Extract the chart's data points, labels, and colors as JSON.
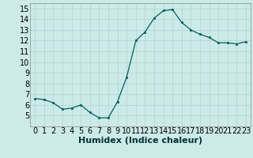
{
  "x": [
    0,
    1,
    2,
    3,
    4,
    5,
    6,
    7,
    8,
    9,
    10,
    11,
    12,
    13,
    14,
    15,
    16,
    17,
    18,
    19,
    20,
    21,
    22,
    23
  ],
  "y": [
    6.6,
    6.5,
    6.2,
    5.6,
    5.7,
    6.0,
    5.3,
    4.8,
    4.8,
    6.3,
    8.6,
    12.0,
    12.8,
    14.1,
    14.8,
    14.9,
    13.7,
    13.0,
    12.6,
    12.3,
    11.8,
    11.8,
    11.7,
    11.9
  ],
  "line_color": "#006060",
  "marker_color": "#006060",
  "bg_color": "#cceae8",
  "grid_color": "#b0d4d0",
  "xlabel": "Humidex (Indice chaleur)",
  "ylim": [
    4,
    15.5
  ],
  "xlim": [
    -0.5,
    23.5
  ],
  "yticks": [
    5,
    6,
    7,
    8,
    9,
    10,
    11,
    12,
    13,
    14,
    15
  ],
  "xticks": [
    0,
    1,
    2,
    3,
    4,
    5,
    6,
    7,
    8,
    9,
    10,
    11,
    12,
    13,
    14,
    15,
    16,
    17,
    18,
    19,
    20,
    21,
    22,
    23
  ],
  "xlabel_fontsize": 8,
  "tick_fontsize": 7
}
